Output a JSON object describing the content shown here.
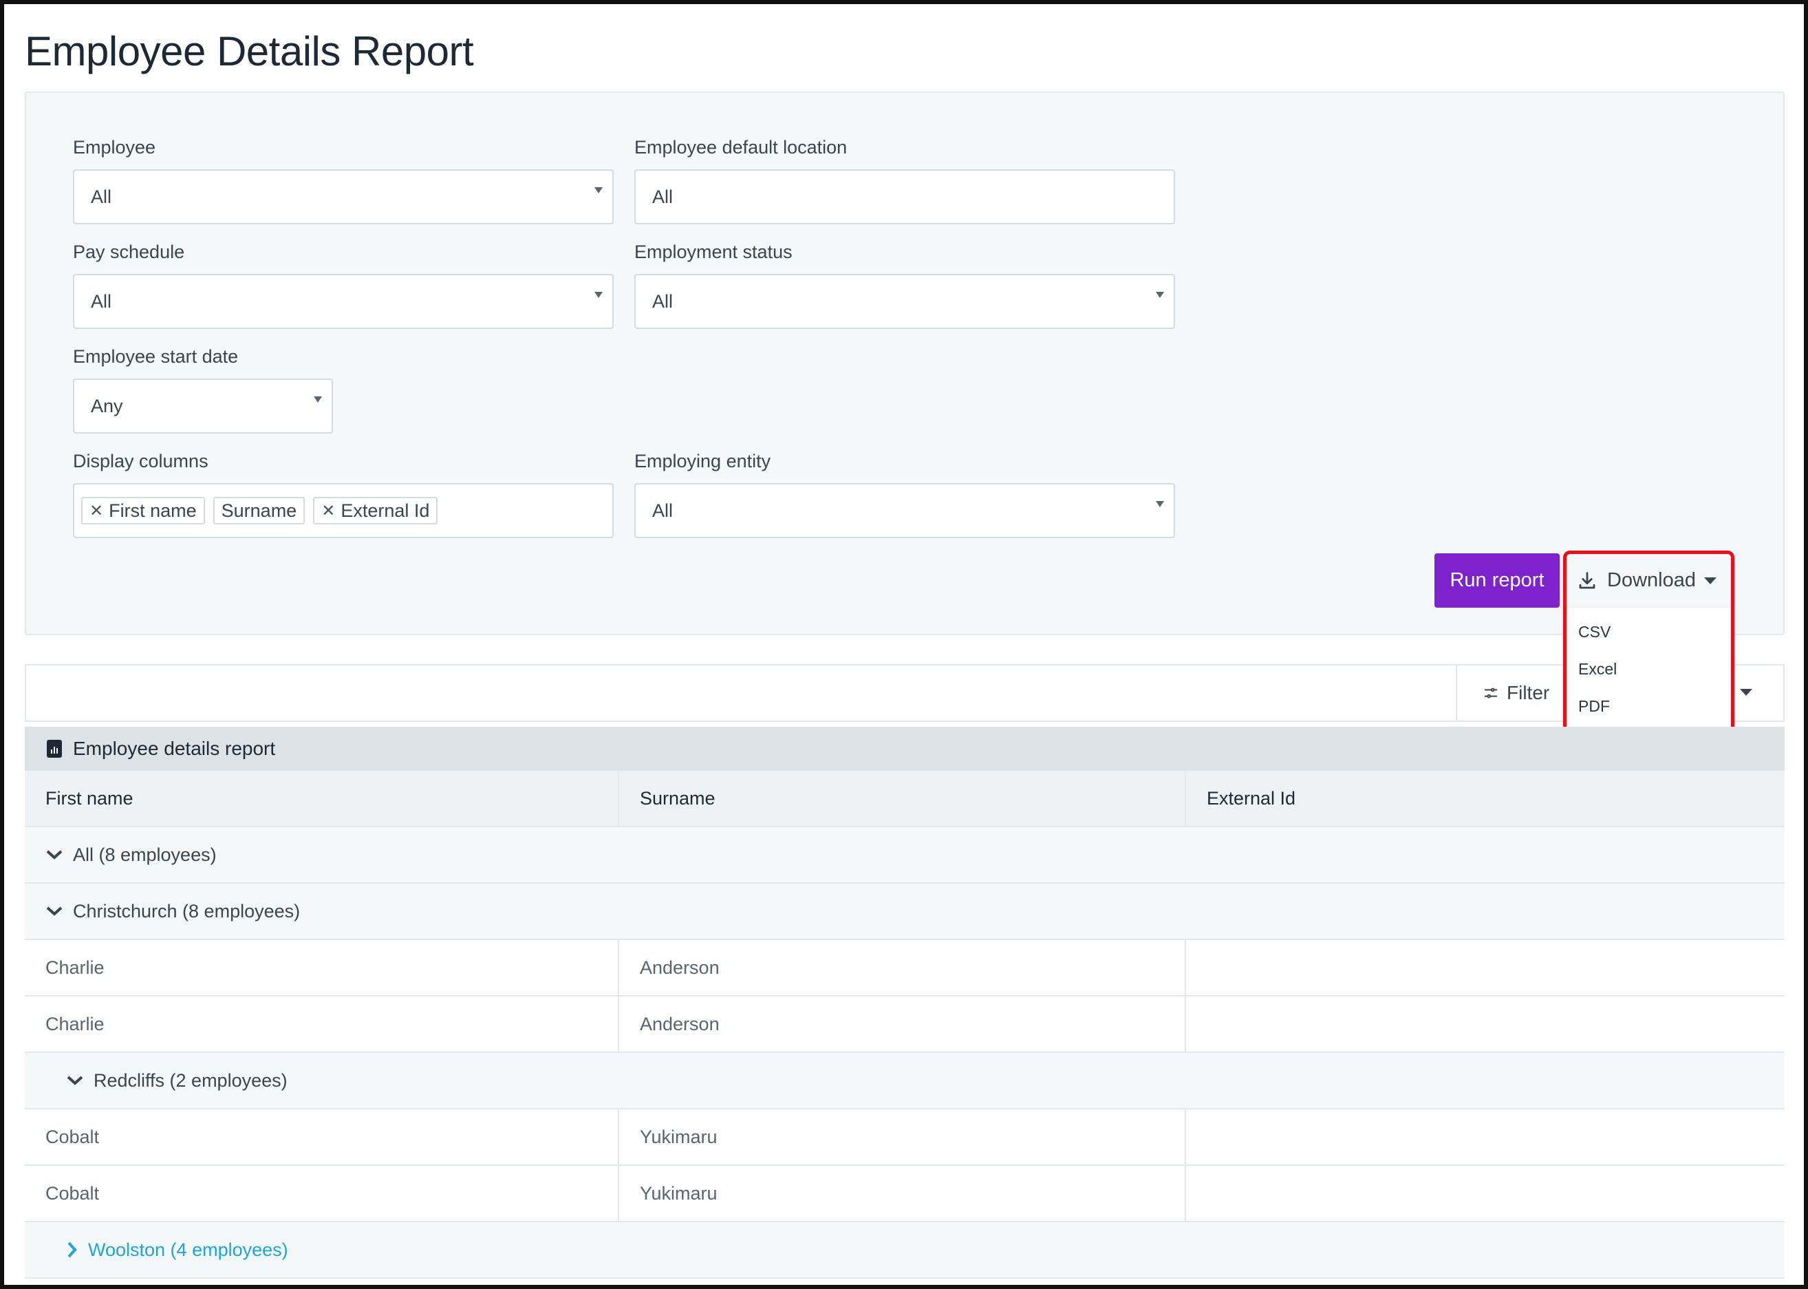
{
  "page": {
    "title": "Employee Details Report"
  },
  "filters": {
    "employee": {
      "label": "Employee",
      "value": "All"
    },
    "default_location": {
      "label": "Employee default location",
      "value": "All"
    },
    "pay_schedule": {
      "label": "Pay schedule",
      "value": "All"
    },
    "employment_status": {
      "label": "Employment status",
      "value": "All"
    },
    "start_date": {
      "label": "Employee start date",
      "value": "Any"
    },
    "display_columns": {
      "label": "Display columns",
      "tags": [
        "First name",
        "Surname",
        "External Id"
      ]
    },
    "employing_entity": {
      "label": "Employing entity",
      "value": "All"
    }
  },
  "actions": {
    "run_label": "Run report",
    "download_label": "Download",
    "download_options": [
      "CSV",
      "Excel",
      "PDF"
    ],
    "accent_color": "#7e22ce",
    "highlight_color": "#e8111b"
  },
  "toolbar": {
    "filter_label": "Filter"
  },
  "report": {
    "title": "Employee details report",
    "columns": [
      "First name",
      "Surname",
      "External Id"
    ],
    "groups": {
      "all": "All (8 employees)",
      "christchurch": "Christchurch (8 employees)",
      "redcliffs": "Redcliffs (2 employees)",
      "woolston": "Woolston (4 employees)"
    },
    "rows": [
      {
        "first": "Charlie",
        "surname": "Anderson",
        "external": ""
      },
      {
        "first": "Charlie",
        "surname": "Anderson",
        "external": ""
      },
      {
        "first": "Cobalt",
        "surname": "Yukimaru",
        "external": ""
      },
      {
        "first": "Cobalt",
        "surname": "Yukimaru",
        "external": ""
      }
    ]
  }
}
